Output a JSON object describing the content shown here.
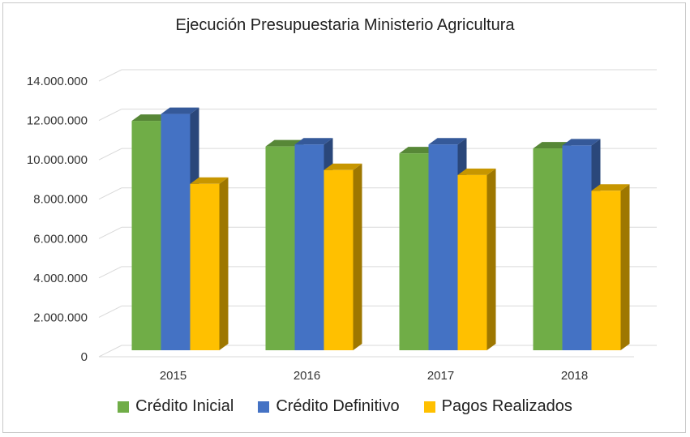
{
  "chart_data": {
    "type": "bar",
    "title": "Ejecución Presupuestaria Ministerio Agricultura",
    "xlabel": "",
    "ylabel": "",
    "categories": [
      "2015",
      "2016",
      "2017",
      "2018"
    ],
    "series": [
      {
        "name": "Crédito Inicial",
        "values": [
          11650000,
          10350000,
          10000000,
          10250000
        ],
        "color": "#70ad47"
      },
      {
        "name": "Crédito Definitivo",
        "values": [
          12000000,
          10450000,
          10450000,
          10400000
        ],
        "color": "#4472c4"
      },
      {
        "name": "Pagos Realizados",
        "values": [
          8450000,
          9150000,
          8900000,
          8100000
        ],
        "color": "#ffc000"
      }
    ],
    "ylim": [
      0,
      14000000
    ],
    "yticks": [
      0,
      2000000,
      4000000,
      6000000,
      8000000,
      10000000,
      12000000,
      14000000
    ],
    "ytick_labels": [
      "0",
      "2.000.000",
      "4.000.000",
      "6.000.000",
      "8.000.000",
      "10.000.000",
      "12.000.000",
      "14.000.000"
    ],
    "grid": true,
    "legend_position": "bottom"
  }
}
